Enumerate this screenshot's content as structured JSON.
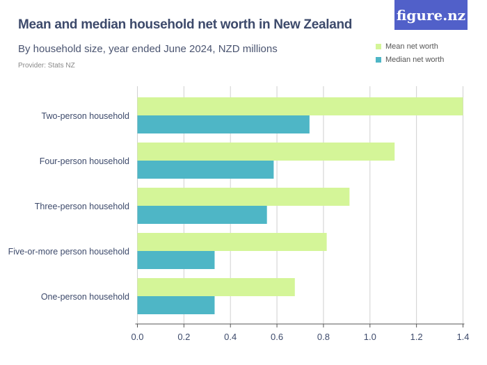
{
  "chart_data": {
    "type": "bar",
    "orientation": "horizontal",
    "title": "Mean and median household net worth in New Zealand",
    "subtitle": "By household size, year ended June 2024, NZD millions",
    "provider": "Provider: Stats NZ",
    "categories": [
      "Two-person household",
      "Four-person household",
      "Three-person household",
      "Five-or-more person household",
      "One-person household"
    ],
    "series": [
      {
        "name": "Mean net worth",
        "color": "#d4f598",
        "values": [
          1.4,
          1.106,
          0.912,
          0.814,
          0.677
        ]
      },
      {
        "name": "Median net worth",
        "color": "#4eb6c6",
        "values": [
          0.74,
          0.586,
          0.557,
          0.332,
          0.332
        ]
      }
    ],
    "xlim": [
      0,
      1.4
    ],
    "xticks": [
      "0.0",
      "0.2",
      "0.4",
      "0.6",
      "0.8",
      "1.0",
      "1.2",
      "1.4"
    ],
    "grid": true,
    "legend": "top-right"
  },
  "logo": "figure.nz"
}
